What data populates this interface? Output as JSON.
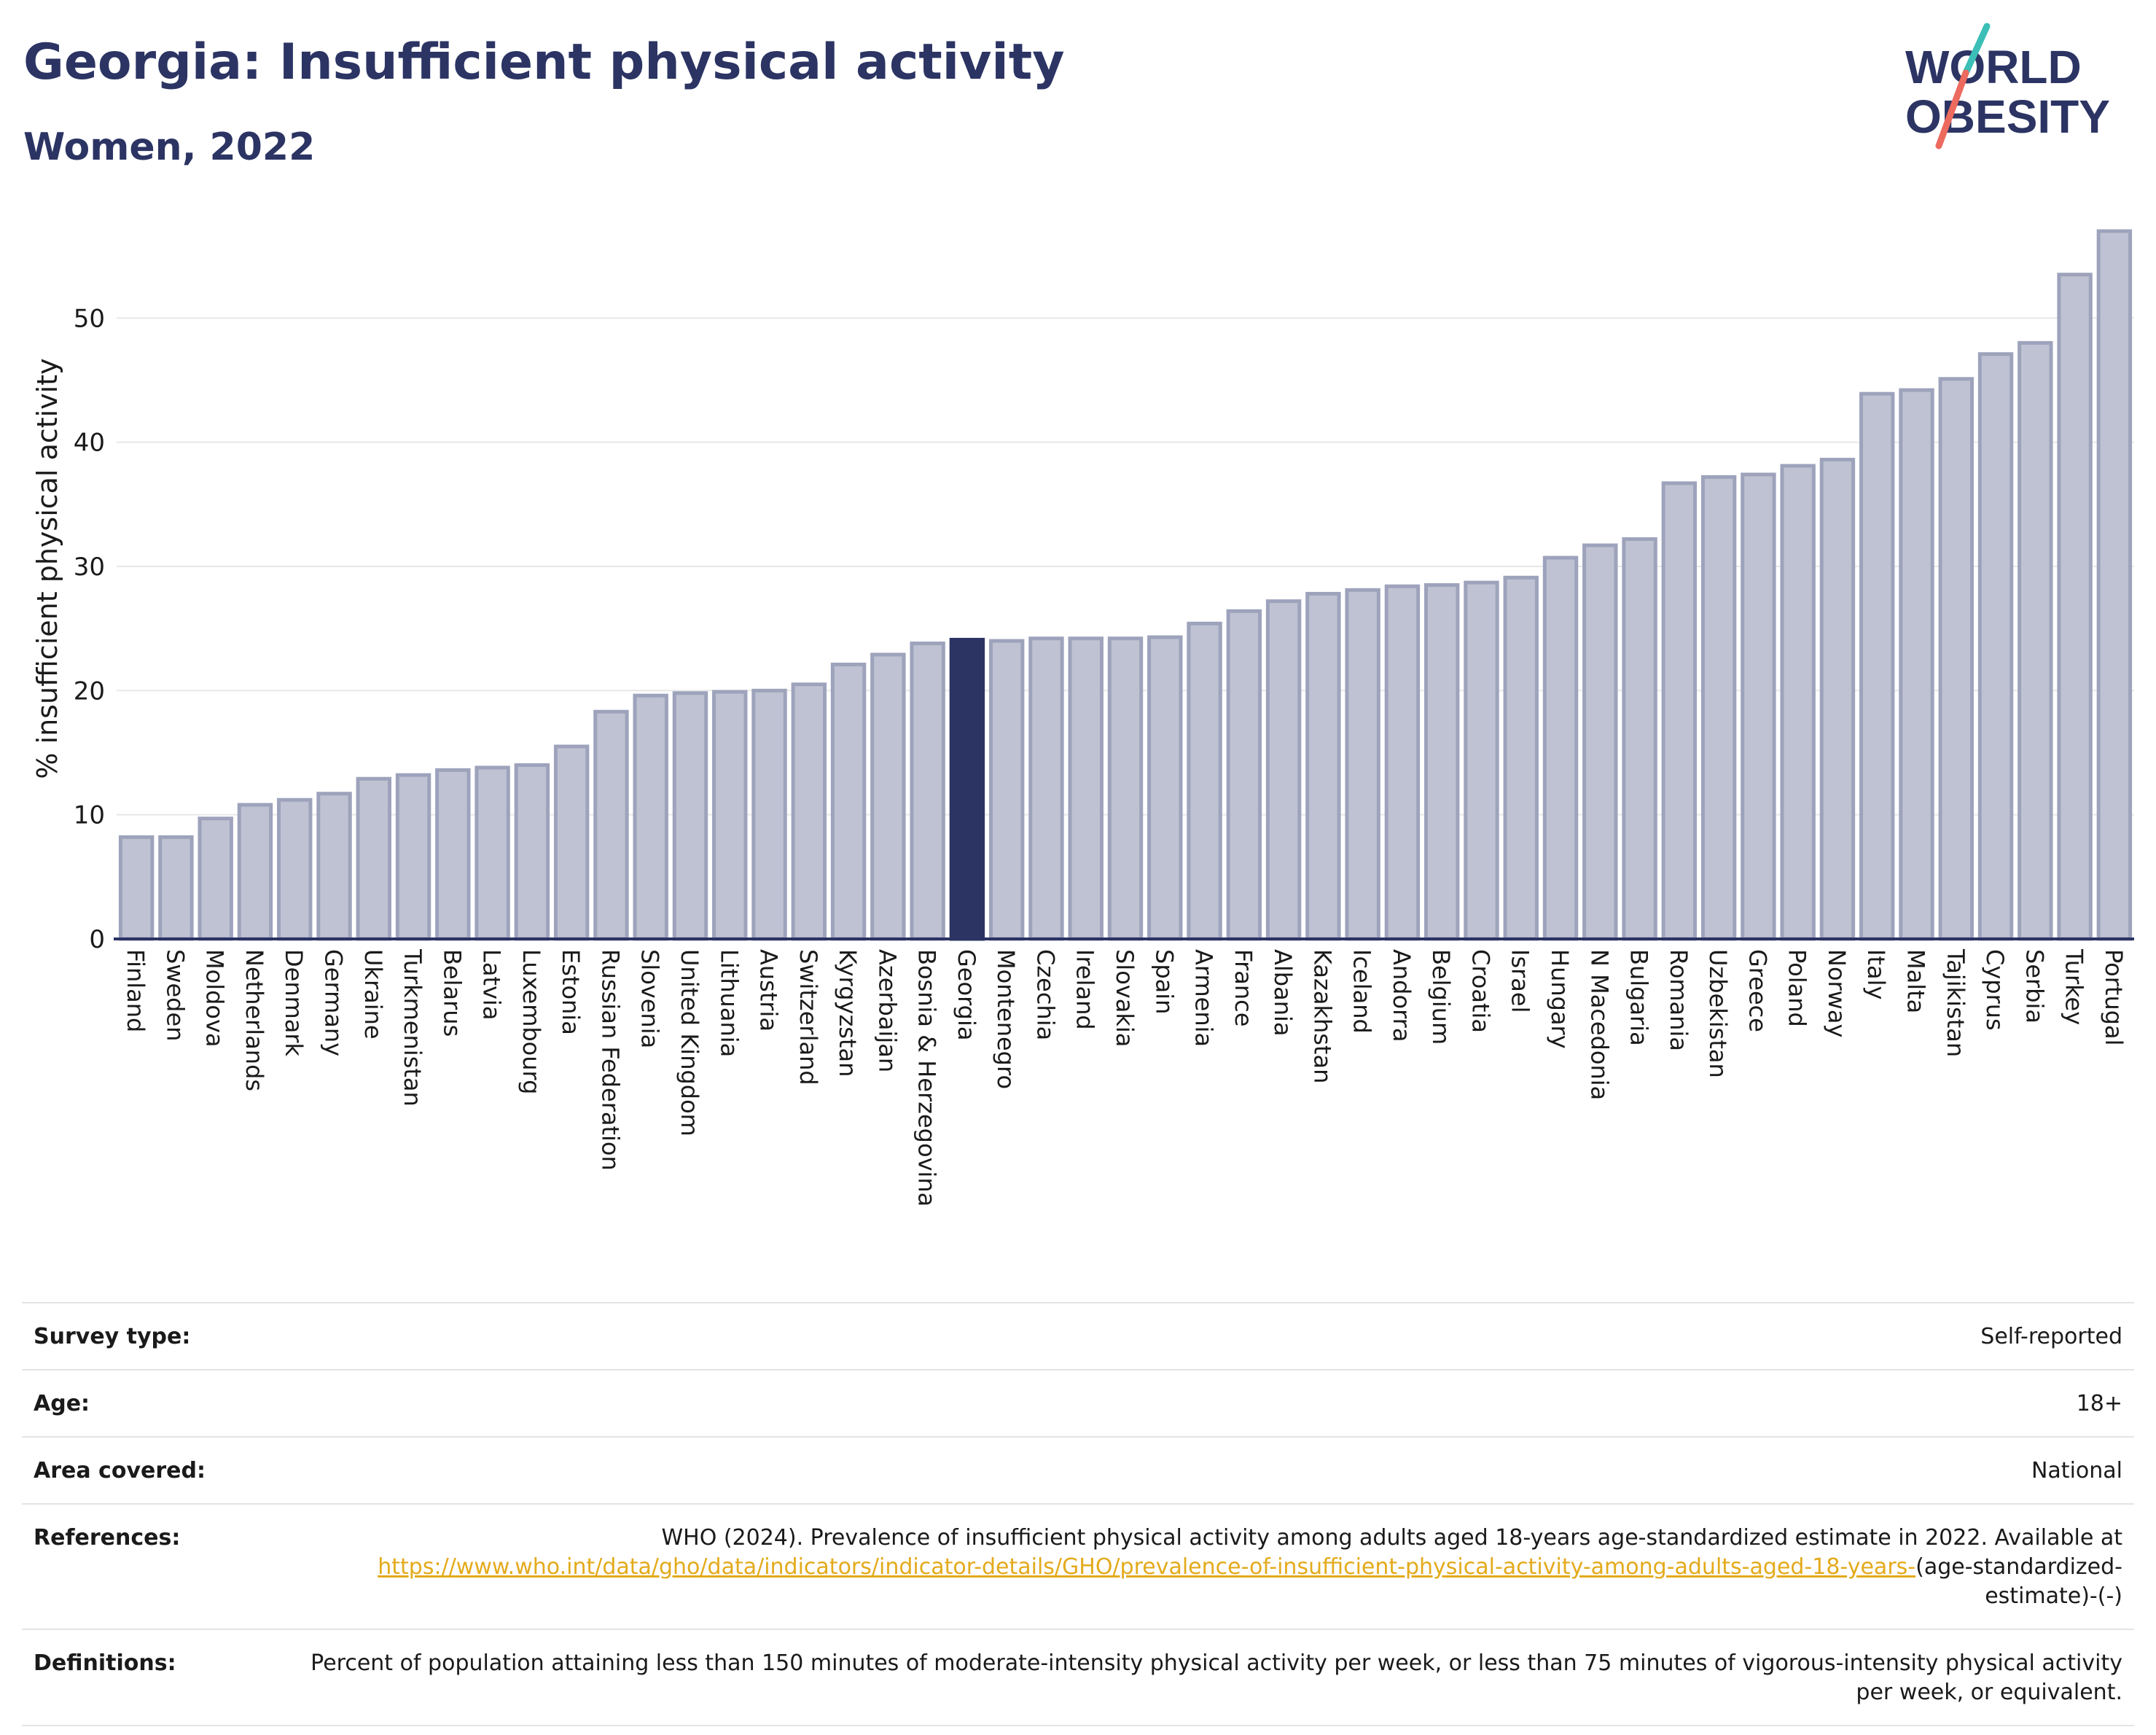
{
  "header": {
    "title": "Georgia: Insufficient physical activity",
    "subtitle": "Women, 2022"
  },
  "logo": {
    "line1": "WORLD",
    "line2": "OBESITY",
    "text_color": "#2b3463",
    "slash_teal": "#3bbfb7",
    "slash_coral": "#ec6a5e"
  },
  "colors": {
    "bar": "#bfc2d2",
    "bar_stroke": "#9ea3bc",
    "highlight": "#2b3463",
    "grid": "#e8e8e8",
    "axis": "#2b3463"
  },
  "chart_data": {
    "type": "bar",
    "ylabel": "% insufficient physical activity",
    "ylim": [
      0,
      58
    ],
    "yticks": [
      0,
      10,
      20,
      30,
      40,
      50
    ],
    "grid": true,
    "highlight": "Georgia",
    "categories": [
      "Finland",
      "Sweden",
      "Moldova",
      "Netherlands",
      "Denmark",
      "Germany",
      "Ukraine",
      "Turkmenistan",
      "Belarus",
      "Latvia",
      "Luxembourg",
      "Estonia",
      "Russian Federation",
      "Slovenia",
      "United Kingdom",
      "Lithuania",
      "Austria",
      "Switzerland",
      "Kyrgyzstan",
      "Azerbaijan",
      "Bosnia & Herzegovina",
      "Georgia",
      "Montenegro",
      "Czechia",
      "Ireland",
      "Slovakia",
      "Spain",
      "Armenia",
      "France",
      "Albania",
      "Kazakhstan",
      "Iceland",
      "Andorra",
      "Belgium",
      "Croatia",
      "Israel",
      "Hungary",
      "N Macedonia",
      "Bulgaria",
      "Romania",
      "Uzbekistan",
      "Greece",
      "Poland",
      "Norway",
      "Italy",
      "Malta",
      "Tajikistan",
      "Cyprus",
      "Serbia",
      "Turkey",
      "Portugal"
    ],
    "values": [
      8.2,
      8.2,
      9.7,
      10.8,
      11.2,
      11.7,
      12.9,
      13.2,
      13.6,
      13.8,
      14.0,
      15.5,
      18.3,
      19.6,
      19.8,
      19.9,
      20.0,
      20.5,
      22.1,
      22.9,
      23.8,
      24.1,
      24.0,
      24.2,
      24.2,
      24.2,
      24.3,
      25.4,
      26.4,
      27.2,
      27.8,
      28.1,
      28.4,
      28.5,
      28.7,
      29.1,
      30.7,
      31.7,
      32.2,
      36.7,
      37.2,
      37.4,
      38.1,
      38.6,
      43.9,
      44.2,
      45.1,
      47.1,
      48.0,
      53.5,
      57.0
    ]
  },
  "meta": {
    "survey_type": {
      "label": "Survey type:",
      "value": "Self-reported"
    },
    "age": {
      "label": "Age:",
      "value": "18+"
    },
    "area": {
      "label": "Area covered:",
      "value": "National"
    },
    "references": {
      "label": "References:",
      "text": "WHO (2024). Prevalence of insufficient physical activity among adults aged 18-years age-standardized estimate in 2022. Available at",
      "link": "https://www.who.int/data/gho/data/indicators/indicator-details/GHO/prevalence-of-insufficient-physical-activity-among-adults-aged-18-years-",
      "suffix": "(age-standardized-estimate)-(-)"
    },
    "definitions": {
      "label": "Definitions:",
      "value": "Percent of population attaining less than 150 minutes of moderate-intensity physical activity per week, or less than 75 minutes of vigorous-intensity physical activity per week, or equivalent."
    }
  }
}
